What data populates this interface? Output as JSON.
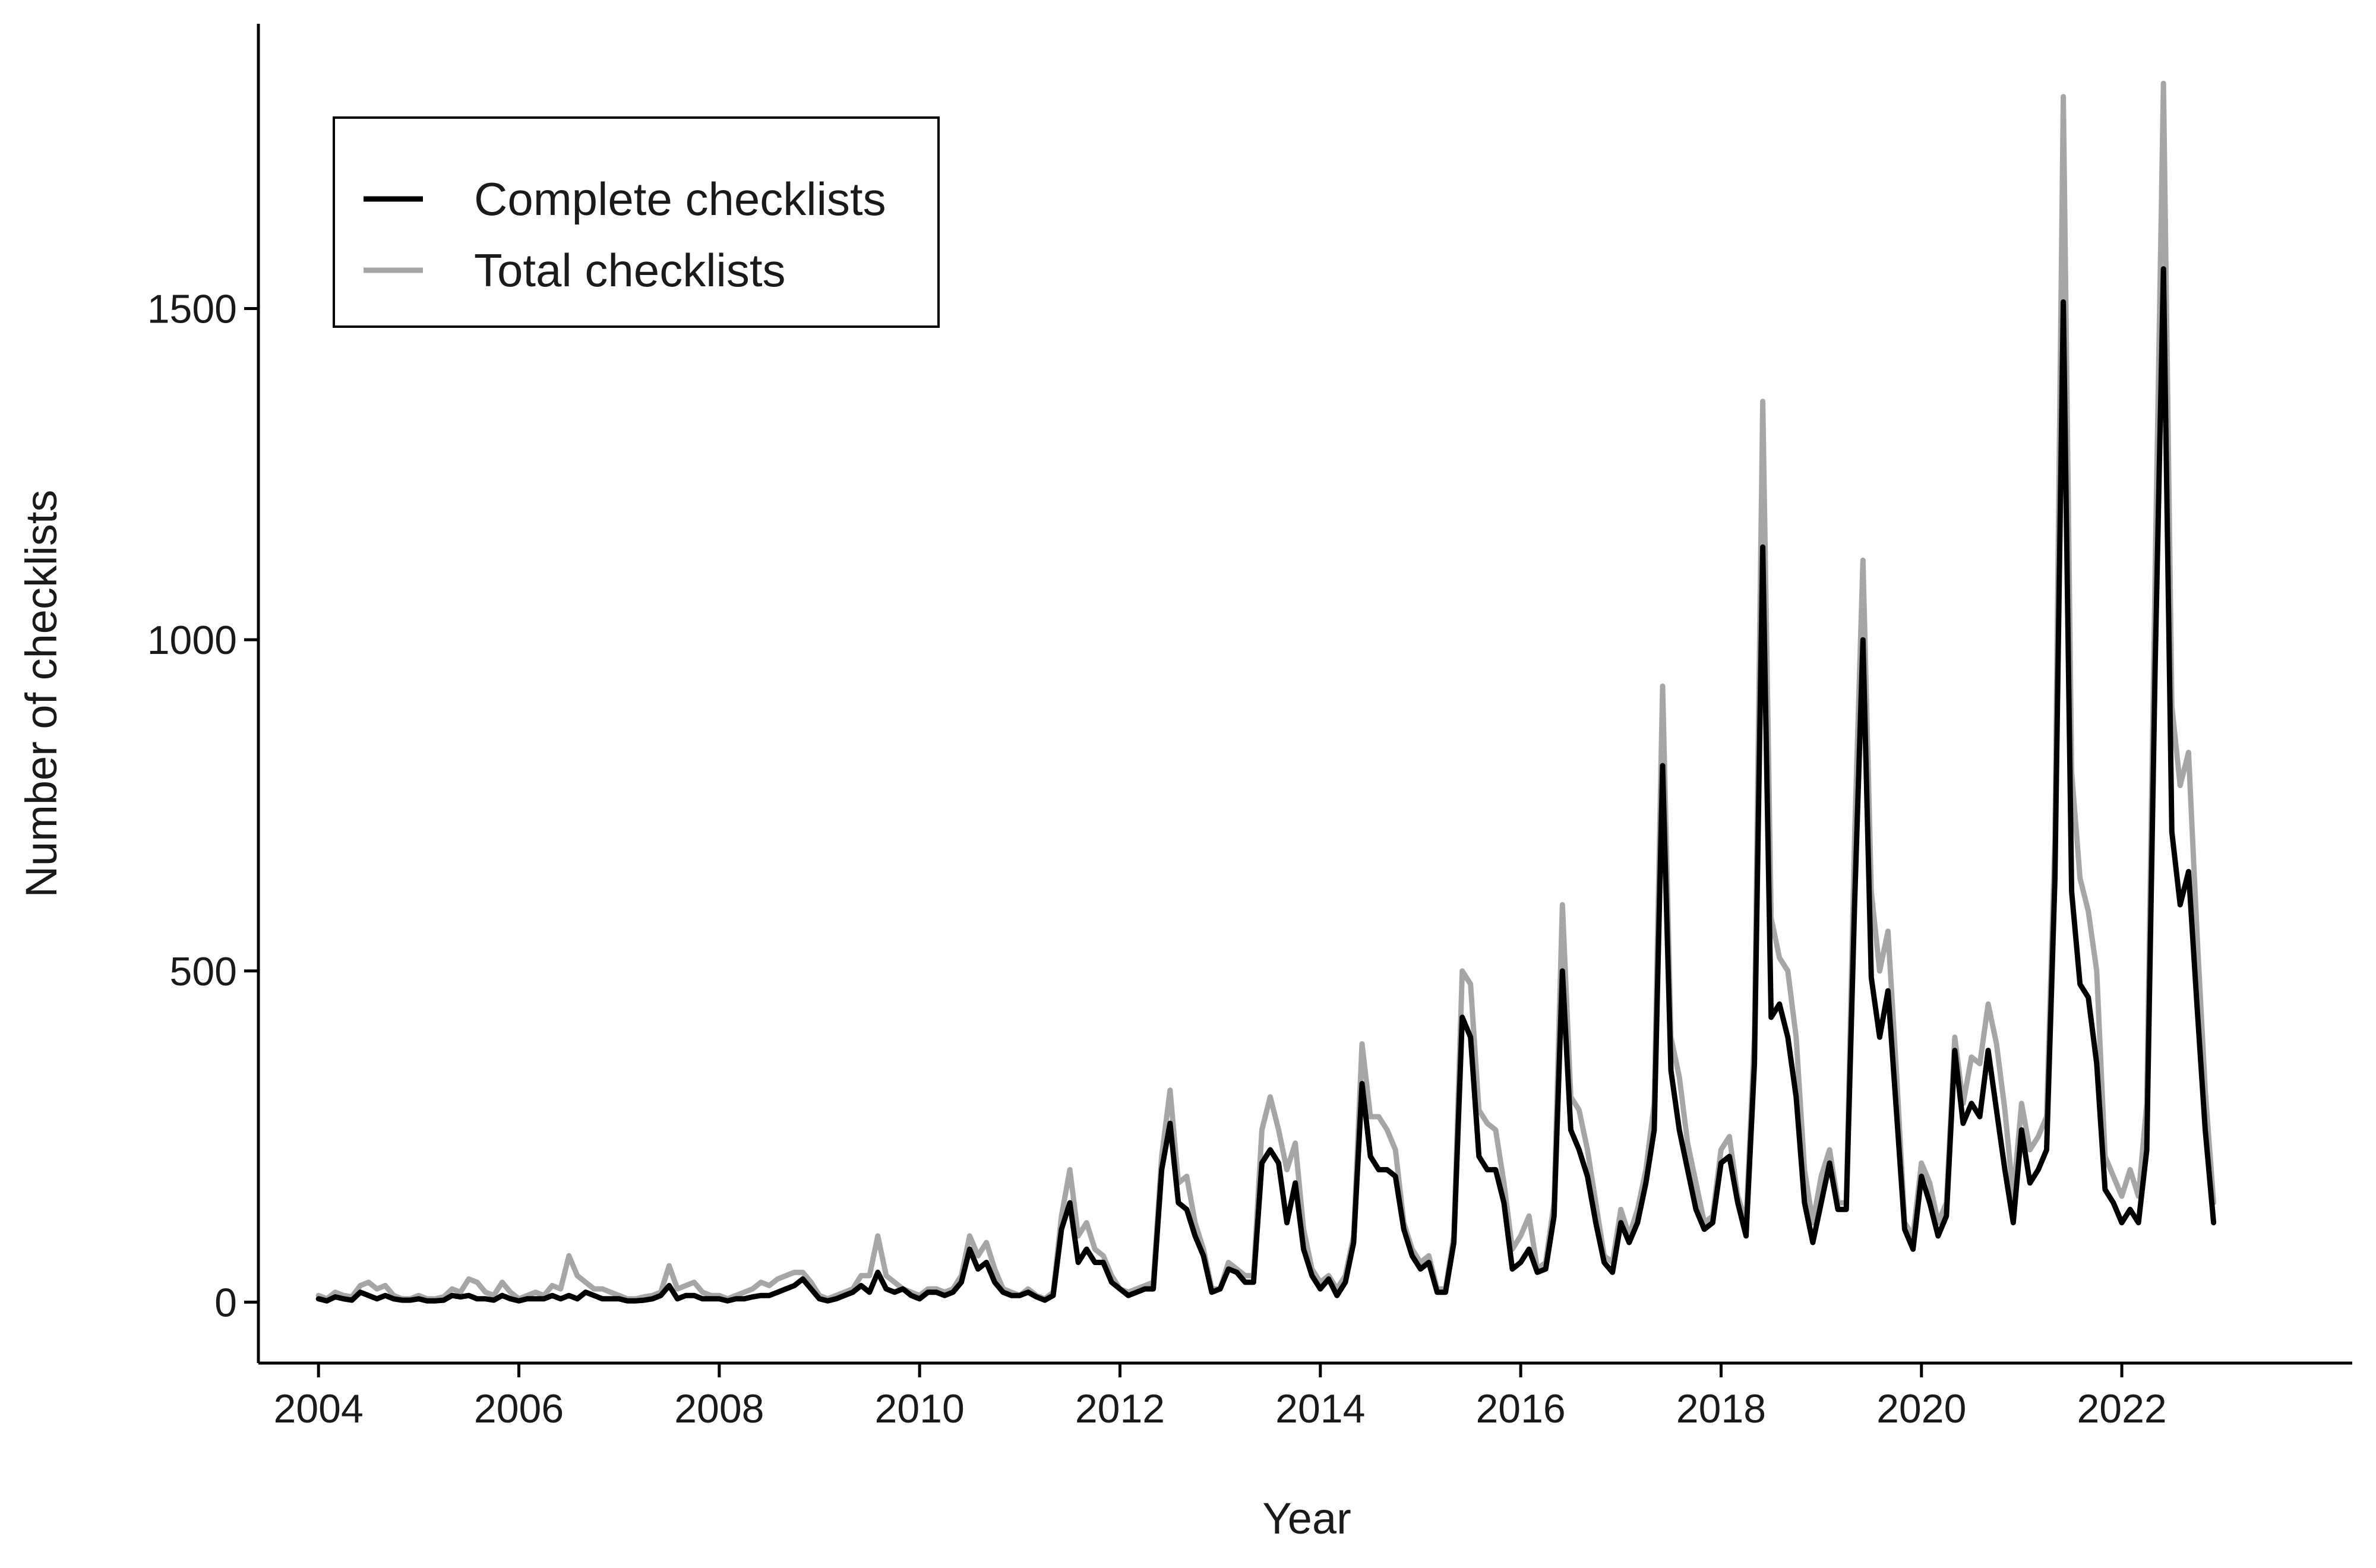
{
  "chart_data": {
    "type": "line",
    "xlabel": "Year",
    "ylabel": "Number of checklists",
    "xlim": [
      2003.4,
      2024.3
    ],
    "ylim": [
      -92,
      1930
    ],
    "x_ticks": [
      2004,
      2006,
      2008,
      2010,
      2012,
      2014,
      2016,
      2018,
      2020,
      2022
    ],
    "y_ticks": [
      0,
      500,
      1000,
      1500
    ],
    "grid": false,
    "legend_position": "top-left",
    "x_start": 2004.0,
    "x_step": 0.08333,
    "series": [
      {
        "name": "Total checklists",
        "color": "#a6a6a6",
        "values": [
          10,
          5,
          15,
          10,
          8,
          25,
          30,
          20,
          25,
          10,
          5,
          5,
          10,
          5,
          5,
          8,
          20,
          15,
          35,
          30,
          15,
          10,
          30,
          15,
          5,
          10,
          15,
          10,
          25,
          20,
          70,
          40,
          30,
          20,
          20,
          15,
          10,
          5,
          5,
          8,
          10,
          15,
          55,
          20,
          25,
          30,
          15,
          10,
          10,
          5,
          10,
          15,
          20,
          30,
          25,
          35,
          40,
          45,
          45,
          30,
          10,
          5,
          10,
          15,
          20,
          40,
          40,
          100,
          40,
          30,
          20,
          15,
          10,
          20,
          20,
          15,
          20,
          40,
          100,
          70,
          90,
          50,
          20,
          15,
          10,
          20,
          10,
          5,
          15,
          130,
          200,
          100,
          120,
          80,
          70,
          40,
          20,
          15,
          20,
          25,
          30,
          220,
          320,
          180,
          190,
          120,
          80,
          20,
          20,
          60,
          50,
          40,
          40,
          260,
          310,
          260,
          200,
          240,
          110,
          50,
          30,
          40,
          20,
          40,
          100,
          390,
          280,
          280,
          260,
          230,
          120,
          80,
          60,
          70,
          20,
          20,
          100,
          500,
          480,
          290,
          270,
          260,
          180,
          80,
          100,
          130,
          50,
          60,
          150,
          600,
          310,
          290,
          230,
          150,
          70,
          60,
          140,
          100,
          140,
          200,
          300,
          930,
          400,
          340,
          240,
          180,
          120,
          130,
          230,
          250,
          160,
          120,
          400,
          1360,
          580,
          520,
          500,
          400,
          200,
          120,
          190,
          230,
          150,
          150,
          700,
          1120,
          620,
          500,
          560,
          350,
          120,
          100,
          210,
          180,
          120,
          150,
          400,
          300,
          370,
          360,
          450,
          390,
          290,
          160,
          300,
          230,
          250,
          280,
          700,
          1820,
          800,
          640,
          590,
          500,
          220,
          190,
          160,
          200,
          160,
          300,
          1100,
          1840,
          900,
          780,
          830,
          560,
          320,
          150
        ]
      },
      {
        "name": "Complete checklists",
        "color": "#000000",
        "values": [
          5,
          2,
          8,
          5,
          3,
          15,
          10,
          5,
          10,
          5,
          3,
          3,
          5,
          2,
          2,
          3,
          10,
          8,
          10,
          5,
          5,
          3,
          10,
          5,
          2,
          5,
          5,
          5,
          10,
          5,
          10,
          5,
          15,
          10,
          5,
          5,
          5,
          2,
          2,
          3,
          5,
          10,
          25,
          5,
          10,
          10,
          5,
          5,
          5,
          2,
          5,
          5,
          8,
          10,
          10,
          15,
          20,
          25,
          35,
          20,
          5,
          2,
          5,
          10,
          15,
          25,
          15,
          45,
          20,
          15,
          20,
          10,
          5,
          15,
          15,
          10,
          15,
          30,
          80,
          50,
          60,
          30,
          15,
          10,
          10,
          15,
          8,
          3,
          10,
          110,
          150,
          60,
          80,
          60,
          60,
          30,
          20,
          10,
          15,
          20,
          20,
          200,
          270,
          150,
          140,
          100,
          70,
          15,
          20,
          50,
          45,
          30,
          30,
          210,
          230,
          210,
          120,
          180,
          80,
          40,
          20,
          35,
          10,
          30,
          90,
          330,
          220,
          200,
          200,
          190,
          110,
          70,
          50,
          60,
          15,
          15,
          90,
          430,
          400,
          220,
          200,
          200,
          150,
          50,
          60,
          80,
          45,
          50,
          130,
          500,
          260,
          230,
          190,
          120,
          60,
          45,
          120,
          90,
          120,
          180,
          260,
          810,
          350,
          260,
          200,
          140,
          110,
          120,
          210,
          220,
          150,
          100,
          360,
          1140,
          430,
          450,
          400,
          310,
          150,
          90,
          150,
          210,
          140,
          140,
          600,
          1000,
          490,
          400,
          470,
          290,
          110,
          80,
          190,
          150,
          100,
          130,
          380,
          270,
          300,
          280,
          380,
          290,
          200,
          120,
          260,
          180,
          200,
          230,
          640,
          1510,
          620,
          480,
          460,
          360,
          170,
          150,
          120,
          140,
          120,
          230,
          960,
          1560,
          710,
          600,
          650,
          450,
          260,
          120
        ]
      }
    ]
  }
}
